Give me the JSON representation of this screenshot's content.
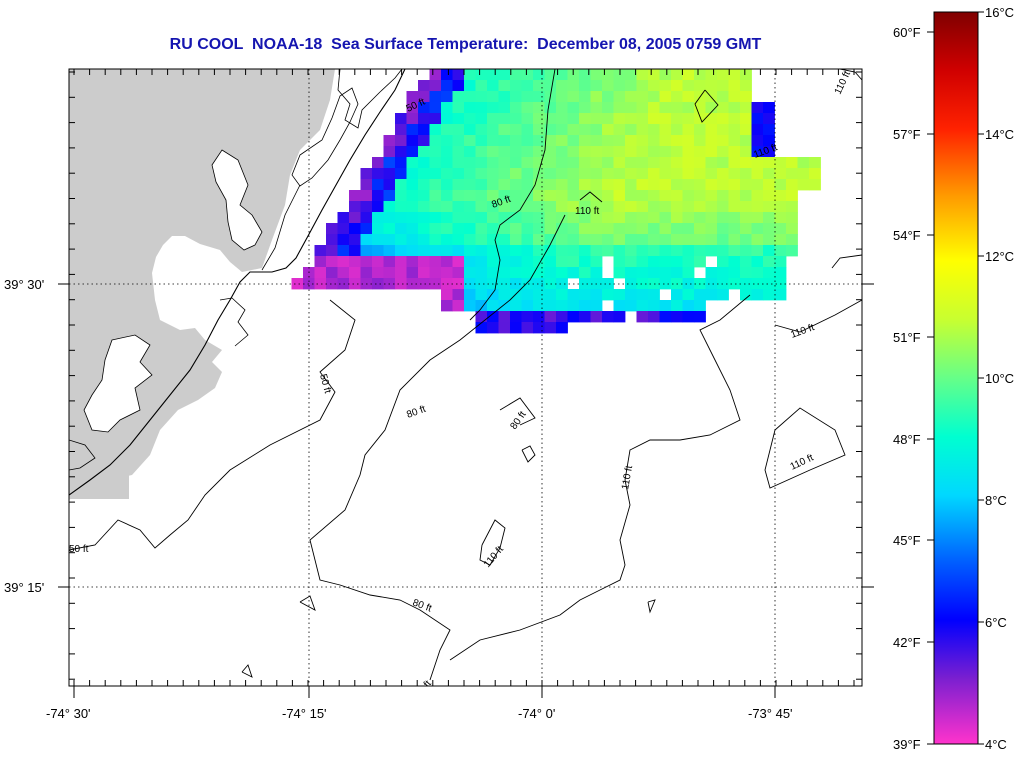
{
  "title": "RU COOL  NOAA-18  Sea Surface Temperature:  December 08, 2005 0759 GMT",
  "map": {
    "lat_labels": [
      "39° 30'",
      "39° 15'"
    ],
    "lon_labels": [
      "-74° 30'",
      "-74° 15'",
      "-74° 0'",
      "-73° 45'"
    ],
    "contour_labels": [
      "50 ft",
      "80 ft",
      "110 ft",
      "110 ft",
      "110 ft",
      "50 ft",
      "80 ft",
      "80 ft",
      "110 ft",
      "110 ft",
      "50 ft",
      "80 ft",
      "110 ft",
      "ft",
      "110 ft"
    ],
    "land_color": "#cccccc",
    "sea_color": "#ffffff"
  },
  "colorbar": {
    "celsius_labels": [
      "16°C",
      "14°C",
      "12°C",
      "10°C",
      "8°C",
      "6°C",
      "4°C"
    ],
    "fahrenheit_labels": [
      "60°F",
      "57°F",
      "54°F",
      "51°F",
      "48°F",
      "45°F",
      "42°F",
      "39°F"
    ],
    "celsius_range": [
      4,
      16
    ],
    "colors": [
      "#ff33cc",
      "#7a1fd0",
      "#0000ff",
      "#00a0ff",
      "#00ffff",
      "#7fff7f",
      "#ffff00",
      "#ff8000",
      "#ff0000",
      "#800000"
    ]
  }
}
